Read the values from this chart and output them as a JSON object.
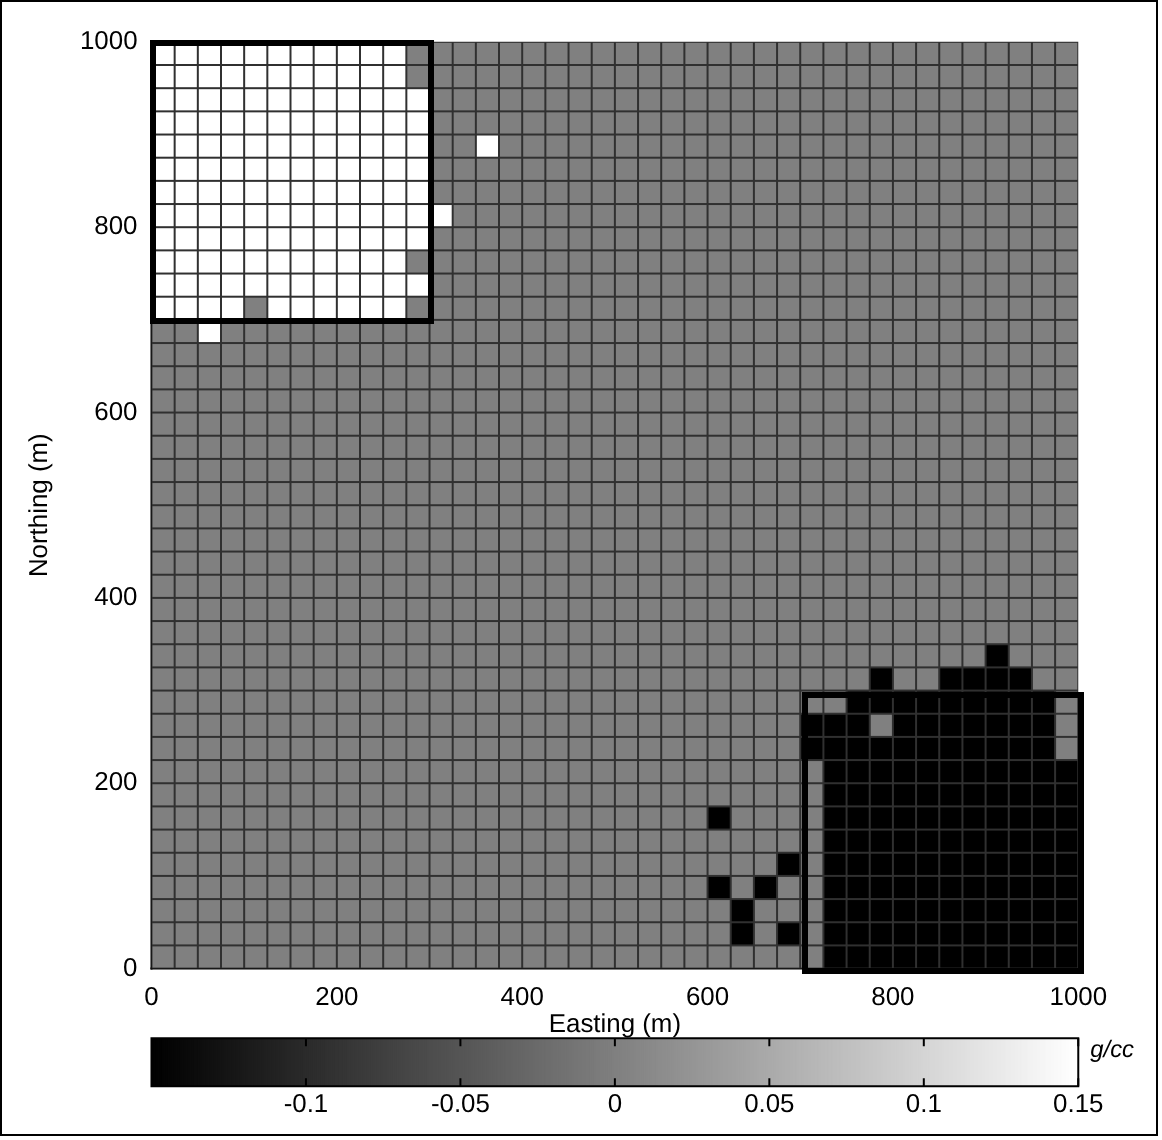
{
  "chart_data": {
    "type": "heatmap",
    "xlabel": "Easting (m)",
    "ylabel": "Northing (m)",
    "clabel": "g/cc",
    "xlim": [
      0,
      1000
    ],
    "ylim": [
      0,
      1000
    ],
    "xticks": [
      0,
      200,
      400,
      600,
      800,
      1000
    ],
    "yticks": [
      0,
      200,
      400,
      600,
      800,
      1000
    ],
    "clim": [
      -0.15,
      0.15
    ],
    "cticks": [
      -0.1,
      -0.05,
      0,
      0.05,
      0.1,
      0.15
    ],
    "x": [
      12.5,
      37.5,
      62.5,
      87.5,
      112.5,
      137.5,
      162.5,
      187.5,
      212.5,
      237.5,
      262.5,
      287.5,
      312.5,
      337.5,
      362.5,
      387.5,
      412.5,
      437.5,
      462.5,
      487.5,
      512.5,
      537.5,
      562.5,
      587.5,
      612.5,
      637.5,
      662.5,
      687.5,
      712.5,
      737.5,
      762.5,
      787.5,
      812.5,
      837.5,
      862.5,
      887.5,
      912.5,
      937.5,
      962.5,
      987.5
    ],
    "y": [
      987.5,
      962.5,
      937.5,
      912.5,
      887.5,
      862.5,
      837.5,
      812.5,
      787.5,
      762.5,
      737.5,
      712.5,
      687.5,
      662.5,
      637.5,
      612.5,
      587.5,
      562.5,
      537.5,
      512.5,
      487.5,
      462.5,
      437.5,
      412.5,
      387.5,
      362.5,
      337.5,
      312.5,
      287.5,
      262.5,
      237.5,
      212.5,
      187.5,
      162.5,
      137.5,
      112.5,
      87.5,
      62.5,
      37.5,
      12.5
    ],
    "cells": [
      [
        0.15,
        0.15,
        0.15,
        0.15,
        0.15,
        0.15,
        0.15,
        0.15,
        0.15,
        0.15,
        0.15,
        0,
        0,
        0,
        0,
        0,
        0,
        0,
        0,
        0,
        0,
        0,
        0,
        0,
        0,
        0,
        0,
        0,
        0,
        0,
        0,
        0,
        0,
        0,
        0,
        0,
        0,
        0,
        0,
        0
      ],
      [
        0.15,
        0.15,
        0.15,
        0.15,
        0.15,
        0.15,
        0.15,
        0.15,
        0.15,
        0.15,
        0.15,
        0,
        0,
        0,
        0,
        0,
        0,
        0,
        0,
        0,
        0,
        0,
        0,
        0,
        0,
        0,
        0,
        0,
        0,
        0,
        0,
        0,
        0,
        0,
        0,
        0,
        0,
        0,
        0,
        0
      ],
      [
        0.15,
        0.15,
        0.15,
        0.15,
        0.15,
        0.15,
        0.15,
        0.15,
        0.15,
        0.15,
        0.15,
        0.15,
        0,
        0,
        0,
        0,
        0,
        0,
        0,
        0,
        0,
        0,
        0,
        0,
        0,
        0,
        0,
        0,
        0,
        0,
        0,
        0,
        0,
        0,
        0,
        0,
        0,
        0,
        0,
        0
      ],
      [
        0.15,
        0.15,
        0.15,
        0.15,
        0.15,
        0.15,
        0.15,
        0.15,
        0.15,
        0.15,
        0.15,
        0.15,
        0,
        0,
        0,
        0,
        0,
        0,
        0,
        0,
        0,
        0,
        0,
        0,
        0,
        0,
        0,
        0,
        0,
        0,
        0,
        0,
        0,
        0,
        0,
        0,
        0,
        0,
        0,
        0
      ],
      [
        0.15,
        0.15,
        0.15,
        0.15,
        0.15,
        0.15,
        0.15,
        0.15,
        0.15,
        0.15,
        0.15,
        0.15,
        0,
        0,
        0.15,
        0,
        0,
        0,
        0,
        0,
        0,
        0,
        0,
        0,
        0,
        0,
        0,
        0,
        0,
        0,
        0,
        0,
        0,
        0,
        0,
        0,
        0,
        0,
        0,
        0
      ],
      [
        0.15,
        0.15,
        0.15,
        0.15,
        0.15,
        0.15,
        0.15,
        0.15,
        0.15,
        0.15,
        0.15,
        0.15,
        0,
        0,
        0,
        0,
        0,
        0,
        0,
        0,
        0,
        0,
        0,
        0,
        0,
        0,
        0,
        0,
        0,
        0,
        0,
        0,
        0,
        0,
        0,
        0,
        0,
        0,
        0,
        0
      ],
      [
        0.15,
        0.15,
        0.15,
        0.15,
        0.15,
        0.15,
        0.15,
        0.15,
        0.15,
        0.15,
        0.15,
        0.15,
        0,
        0,
        0,
        0,
        0,
        0,
        0,
        0,
        0,
        0,
        0,
        0,
        0,
        0,
        0,
        0,
        0,
        0,
        0,
        0,
        0,
        0,
        0,
        0,
        0,
        0,
        0,
        0
      ],
      [
        0.15,
        0.15,
        0.15,
        0.15,
        0.15,
        0.15,
        0.15,
        0.15,
        0.15,
        0.15,
        0.15,
        0.15,
        0.15,
        0,
        0,
        0,
        0,
        0,
        0,
        0,
        0,
        0,
        0,
        0,
        0,
        0,
        0,
        0,
        0,
        0,
        0,
        0,
        0,
        0,
        0,
        0,
        0,
        0,
        0,
        0
      ],
      [
        0.15,
        0.15,
        0.15,
        0.15,
        0.15,
        0.15,
        0.15,
        0.15,
        0.15,
        0.15,
        0.15,
        0.15,
        0,
        0,
        0,
        0,
        0,
        0,
        0,
        0,
        0,
        0,
        0,
        0,
        0,
        0,
        0,
        0,
        0,
        0,
        0,
        0,
        0,
        0,
        0,
        0,
        0,
        0,
        0,
        0
      ],
      [
        0.15,
        0.15,
        0.15,
        0.15,
        0.15,
        0.15,
        0.15,
        0.15,
        0.15,
        0.15,
        0.15,
        0,
        0,
        0,
        0,
        0,
        0,
        0,
        0,
        0,
        0,
        0,
        0,
        0,
        0,
        0,
        0,
        0,
        0,
        0,
        0,
        0,
        0,
        0,
        0,
        0,
        0,
        0,
        0,
        0
      ],
      [
        0.15,
        0.15,
        0.15,
        0.15,
        0.15,
        0.15,
        0.15,
        0.15,
        0.15,
        0.15,
        0.15,
        0.15,
        0,
        0,
        0,
        0,
        0,
        0,
        0,
        0,
        0,
        0,
        0,
        0,
        0,
        0,
        0,
        0,
        0,
        0,
        0,
        0,
        0,
        0,
        0,
        0,
        0,
        0,
        0,
        0
      ],
      [
        0.15,
        0.15,
        0.15,
        0.15,
        0,
        0.15,
        0.15,
        0.15,
        0.15,
        0.15,
        0.15,
        0,
        0,
        0,
        0,
        0,
        0,
        0,
        0,
        0,
        0,
        0,
        0,
        0,
        0,
        0,
        0,
        0,
        0,
        0,
        0,
        0,
        0,
        0,
        0,
        0,
        0,
        0,
        0,
        0
      ],
      [
        0,
        0,
        0.15,
        0,
        0,
        0,
        0,
        0,
        0,
        0,
        0,
        0,
        0,
        0,
        0,
        0,
        0,
        0,
        0,
        0,
        0,
        0,
        0,
        0,
        0,
        0,
        0,
        0,
        0,
        0,
        0,
        0,
        0,
        0,
        0,
        0,
        0,
        0,
        0,
        0
      ],
      [
        0,
        0,
        0,
        0,
        0,
        0,
        0,
        0,
        0,
        0,
        0,
        0,
        0,
        0,
        0,
        0,
        0,
        0,
        0,
        0,
        0,
        0,
        0,
        0,
        0,
        0,
        0,
        0,
        0,
        0,
        0,
        0,
        0,
        0,
        0,
        0,
        0,
        0,
        0,
        0
      ],
      [
        0,
        0,
        0,
        0,
        0,
        0,
        0,
        0,
        0,
        0,
        0,
        0,
        0,
        0,
        0,
        0,
        0,
        0,
        0,
        0,
        0,
        0,
        0,
        0,
        0,
        0,
        0,
        0,
        0,
        0,
        0,
        0,
        0,
        0,
        0,
        0,
        0,
        0,
        0,
        0
      ],
      [
        0,
        0,
        0,
        0,
        0,
        0,
        0,
        0,
        0,
        0,
        0,
        0,
        0,
        0,
        0,
        0,
        0,
        0,
        0,
        0,
        0,
        0,
        0,
        0,
        0,
        0,
        0,
        0,
        0,
        0,
        0,
        0,
        0,
        0,
        0,
        0,
        0,
        0,
        0,
        0
      ],
      [
        0,
        0,
        0,
        0,
        0,
        0,
        0,
        0,
        0,
        0,
        0,
        0,
        0,
        0,
        0,
        0,
        0,
        0,
        0,
        0,
        0,
        0,
        0,
        0,
        0,
        0,
        0,
        0,
        0,
        0,
        0,
        0,
        0,
        0,
        0,
        0,
        0,
        0,
        0,
        0
      ],
      [
        0,
        0,
        0,
        0,
        0,
        0,
        0,
        0,
        0,
        0,
        0,
        0,
        0,
        0,
        0,
        0,
        0,
        0,
        0,
        0,
        0,
        0,
        0,
        0,
        0,
        0,
        0,
        0,
        0,
        0,
        0,
        0,
        0,
        0,
        0,
        0,
        0,
        0,
        0,
        0
      ],
      [
        0,
        0,
        0,
        0,
        0,
        0,
        0,
        0,
        0,
        0,
        0,
        0,
        0,
        0,
        0,
        0,
        0,
        0,
        0,
        0,
        0,
        0,
        0,
        0,
        0,
        0,
        0,
        0,
        0,
        0,
        0,
        0,
        0,
        0,
        0,
        0,
        0,
        0,
        0,
        0
      ],
      [
        0,
        0,
        0,
        0,
        0,
        0,
        0,
        0,
        0,
        0,
        0,
        0,
        0,
        0,
        0,
        0,
        0,
        0,
        0,
        0,
        0,
        0,
        0,
        0,
        0,
        0,
        0,
        0,
        0,
        0,
        0,
        0,
        0,
        0,
        0,
        0,
        0,
        0,
        0,
        0
      ],
      [
        0,
        0,
        0,
        0,
        0,
        0,
        0,
        0,
        0,
        0,
        0,
        0,
        0,
        0,
        0,
        0,
        0,
        0,
        0,
        0,
        0,
        0,
        0,
        0,
        0,
        0,
        0,
        0,
        0,
        0,
        0,
        0,
        0,
        0,
        0,
        0,
        0,
        0,
        0,
        0
      ],
      [
        0,
        0,
        0,
        0,
        0,
        0,
        0,
        0,
        0,
        0,
        0,
        0,
        0,
        0,
        0,
        0,
        0,
        0,
        0,
        0,
        0,
        0,
        0,
        0,
        0,
        0,
        0,
        0,
        0,
        0,
        0,
        0,
        0,
        0,
        0,
        0,
        0,
        0,
        0,
        0
      ],
      [
        0,
        0,
        0,
        0,
        0,
        0,
        0,
        0,
        0,
        0,
        0,
        0,
        0,
        0,
        0,
        0,
        0,
        0,
        0,
        0,
        0,
        0,
        0,
        0,
        0,
        0,
        0,
        0,
        0,
        0,
        0,
        0,
        0,
        0,
        0,
        0,
        0,
        0,
        0,
        0
      ],
      [
        0,
        0,
        0,
        0,
        0,
        0,
        0,
        0,
        0,
        0,
        0,
        0,
        0,
        0,
        0,
        0,
        0,
        0,
        0,
        0,
        0,
        0,
        0,
        0,
        0,
        0,
        0,
        0,
        0,
        0,
        0,
        0,
        0,
        0,
        0,
        0,
        0,
        0,
        0,
        0
      ],
      [
        0,
        0,
        0,
        0,
        0,
        0,
        0,
        0,
        0,
        0,
        0,
        0,
        0,
        0,
        0,
        0,
        0,
        0,
        0,
        0,
        0,
        0,
        0,
        0,
        0,
        0,
        0,
        0,
        0,
        0,
        0,
        0,
        0,
        0,
        0,
        0,
        0,
        0,
        0,
        0
      ],
      [
        0,
        0,
        0,
        0,
        0,
        0,
        0,
        0,
        0,
        0,
        0,
        0,
        0,
        0,
        0,
        0,
        0,
        0,
        0,
        0,
        0,
        0,
        0,
        0,
        0,
        0,
        0,
        0,
        0,
        0,
        0,
        0,
        0,
        0,
        0,
        0,
        0,
        0,
        0,
        0
      ],
      [
        0,
        0,
        0,
        0,
        0,
        0,
        0,
        0,
        0,
        0,
        0,
        0,
        0,
        0,
        0,
        0,
        0,
        0,
        0,
        0,
        0,
        0,
        0,
        0,
        0,
        0,
        0,
        0,
        0,
        0,
        0,
        0,
        0,
        0,
        0,
        0,
        -0.15,
        0,
        0,
        0
      ],
      [
        0,
        0,
        0,
        0,
        0,
        0,
        0,
        0,
        0,
        0,
        0,
        0,
        0,
        0,
        0,
        0,
        0,
        0,
        0,
        0,
        0,
        0,
        0,
        0,
        0,
        0,
        0,
        0,
        0,
        0,
        0,
        -0.15,
        0,
        0,
        -0.15,
        -0.15,
        -0.15,
        -0.15,
        0,
        0
      ],
      [
        0,
        0,
        0,
        0,
        0,
        0,
        0,
        0,
        0,
        0,
        0,
        0,
        0,
        0,
        0,
        0,
        0,
        0,
        0,
        0,
        0,
        0,
        0,
        0,
        0,
        0,
        0,
        0,
        0,
        0,
        -0.15,
        -0.15,
        -0.15,
        -0.15,
        -0.15,
        -0.15,
        -0.15,
        -0.15,
        -0.15,
        0
      ],
      [
        0,
        0,
        0,
        0,
        0,
        0,
        0,
        0,
        0,
        0,
        0,
        0,
        0,
        0,
        0,
        0,
        0,
        0,
        0,
        0,
        0,
        0,
        0,
        0,
        0,
        0,
        0,
        0,
        -0.15,
        -0.15,
        -0.15,
        0,
        -0.15,
        -0.15,
        -0.15,
        -0.15,
        -0.15,
        -0.15,
        -0.15,
        0
      ],
      [
        0,
        0,
        0,
        0,
        0,
        0,
        0,
        0,
        0,
        0,
        0,
        0,
        0,
        0,
        0,
        0,
        0,
        0,
        0,
        0,
        0,
        0,
        0,
        0,
        0,
        0,
        0,
        0,
        -0.15,
        -0.15,
        -0.15,
        -0.15,
        -0.15,
        -0.15,
        -0.15,
        -0.15,
        -0.15,
        -0.15,
        -0.15,
        0
      ],
      [
        0,
        0,
        0,
        0,
        0,
        0,
        0,
        0,
        0,
        0,
        0,
        0,
        0,
        0,
        0,
        0,
        0,
        0,
        0,
        0,
        0,
        0,
        0,
        0,
        0,
        0,
        0,
        0,
        0,
        -0.15,
        -0.15,
        -0.15,
        -0.15,
        -0.15,
        -0.15,
        -0.15,
        -0.15,
        -0.15,
        -0.15,
        -0.15
      ],
      [
        0,
        0,
        0,
        0,
        0,
        0,
        0,
        0,
        0,
        0,
        0,
        0,
        0,
        0,
        0,
        0,
        0,
        0,
        0,
        0,
        0,
        0,
        0,
        0,
        0,
        0,
        0,
        0,
        0,
        -0.15,
        -0.15,
        -0.15,
        -0.15,
        -0.15,
        -0.15,
        -0.15,
        -0.15,
        -0.15,
        -0.15,
        -0.15
      ],
      [
        0,
        0,
        0,
        0,
        0,
        0,
        0,
        0,
        0,
        0,
        0,
        0,
        0,
        0,
        0,
        0,
        0,
        0,
        0,
        0,
        0,
        0,
        0,
        0,
        -0.15,
        0,
        0,
        0,
        0,
        -0.15,
        -0.15,
        -0.15,
        -0.15,
        -0.15,
        -0.15,
        -0.15,
        -0.15,
        -0.15,
        -0.15,
        -0.15
      ],
      [
        0,
        0,
        0,
        0,
        0,
        0,
        0,
        0,
        0,
        0,
        0,
        0,
        0,
        0,
        0,
        0,
        0,
        0,
        0,
        0,
        0,
        0,
        0,
        0,
        0,
        0,
        0,
        0,
        0,
        -0.15,
        -0.15,
        -0.15,
        -0.15,
        -0.15,
        -0.15,
        -0.15,
        -0.15,
        -0.15,
        -0.15,
        -0.15
      ],
      [
        0,
        0,
        0,
        0,
        0,
        0,
        0,
        0,
        0,
        0,
        0,
        0,
        0,
        0,
        0,
        0,
        0,
        0,
        0,
        0,
        0,
        0,
        0,
        0,
        0,
        0,
        0,
        -0.15,
        0,
        -0.15,
        -0.15,
        -0.15,
        -0.15,
        -0.15,
        -0.15,
        -0.15,
        -0.15,
        -0.15,
        -0.15,
        -0.15
      ],
      [
        0,
        0,
        0,
        0,
        0,
        0,
        0,
        0,
        0,
        0,
        0,
        0,
        0,
        0,
        0,
        0,
        0,
        0,
        0,
        0,
        0,
        0,
        0,
        0,
        -0.15,
        0,
        -0.15,
        0,
        0,
        -0.15,
        -0.15,
        -0.15,
        -0.15,
        -0.15,
        -0.15,
        -0.15,
        -0.15,
        -0.15,
        -0.15,
        -0.15
      ],
      [
        0,
        0,
        0,
        0,
        0,
        0,
        0,
        0,
        0,
        0,
        0,
        0,
        0,
        0,
        0,
        0,
        0,
        0,
        0,
        0,
        0,
        0,
        0,
        0,
        0,
        -0.15,
        0,
        0,
        0,
        -0.15,
        -0.15,
        -0.15,
        -0.15,
        -0.15,
        -0.15,
        -0.15,
        -0.15,
        -0.15,
        -0.15,
        -0.15
      ],
      [
        0,
        0,
        0,
        0,
        0,
        0,
        0,
        0,
        0,
        0,
        0,
        0,
        0,
        0,
        0,
        0,
        0,
        0,
        0,
        0,
        0,
        0,
        0,
        0,
        0,
        -0.15,
        0,
        -0.15,
        0,
        -0.15,
        -0.15,
        -0.15,
        -0.15,
        -0.15,
        -0.15,
        -0.15,
        -0.15,
        -0.15,
        -0.15,
        -0.15
      ],
      [
        0,
        0,
        0,
        0,
        0,
        0,
        0,
        0,
        0,
        0,
        0,
        0,
        0,
        0,
        0,
        0,
        0,
        0,
        0,
        0,
        0,
        0,
        0,
        0,
        0,
        0,
        0,
        0,
        0,
        -0.15,
        -0.15,
        -0.15,
        -0.15,
        -0.15,
        -0.15,
        -0.15,
        -0.15,
        -0.15,
        -0.15,
        -0.15
      ]
    ]
  }
}
